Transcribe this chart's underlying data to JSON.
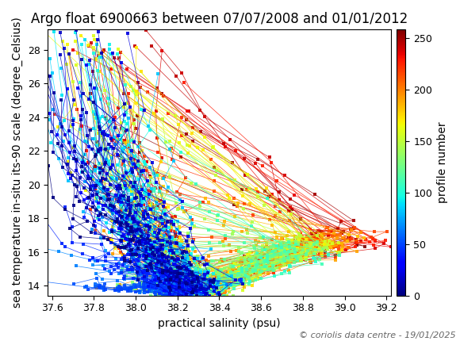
{
  "title": "Argo float 6900663 between 07/07/2008 and 01/01/2012",
  "xlabel": "practical salinity (psu)",
  "ylabel": "sea temperature in-situ its-90 scale (degree_Celsius)",
  "cbar_label": "profile number",
  "copyright": "© coriolis data centre - 19/01/2025",
  "xlim": [
    37.58,
    39.22
  ],
  "ylim": [
    13.4,
    29.2
  ],
  "xticks": [
    37.6,
    37.8,
    38.0,
    38.2,
    38.4,
    38.6,
    38.8,
    39.0,
    39.2
  ],
  "yticks": [
    14,
    16,
    18,
    20,
    22,
    24,
    26,
    28
  ],
  "cbar_ticks": [
    0,
    50,
    100,
    150,
    200,
    250
  ],
  "n_profiles": 258,
  "colormap": "jet",
  "title_fontsize": 12,
  "label_fontsize": 10,
  "tick_fontsize": 9,
  "cbar_fontsize": 10,
  "copyright_fontsize": 8
}
